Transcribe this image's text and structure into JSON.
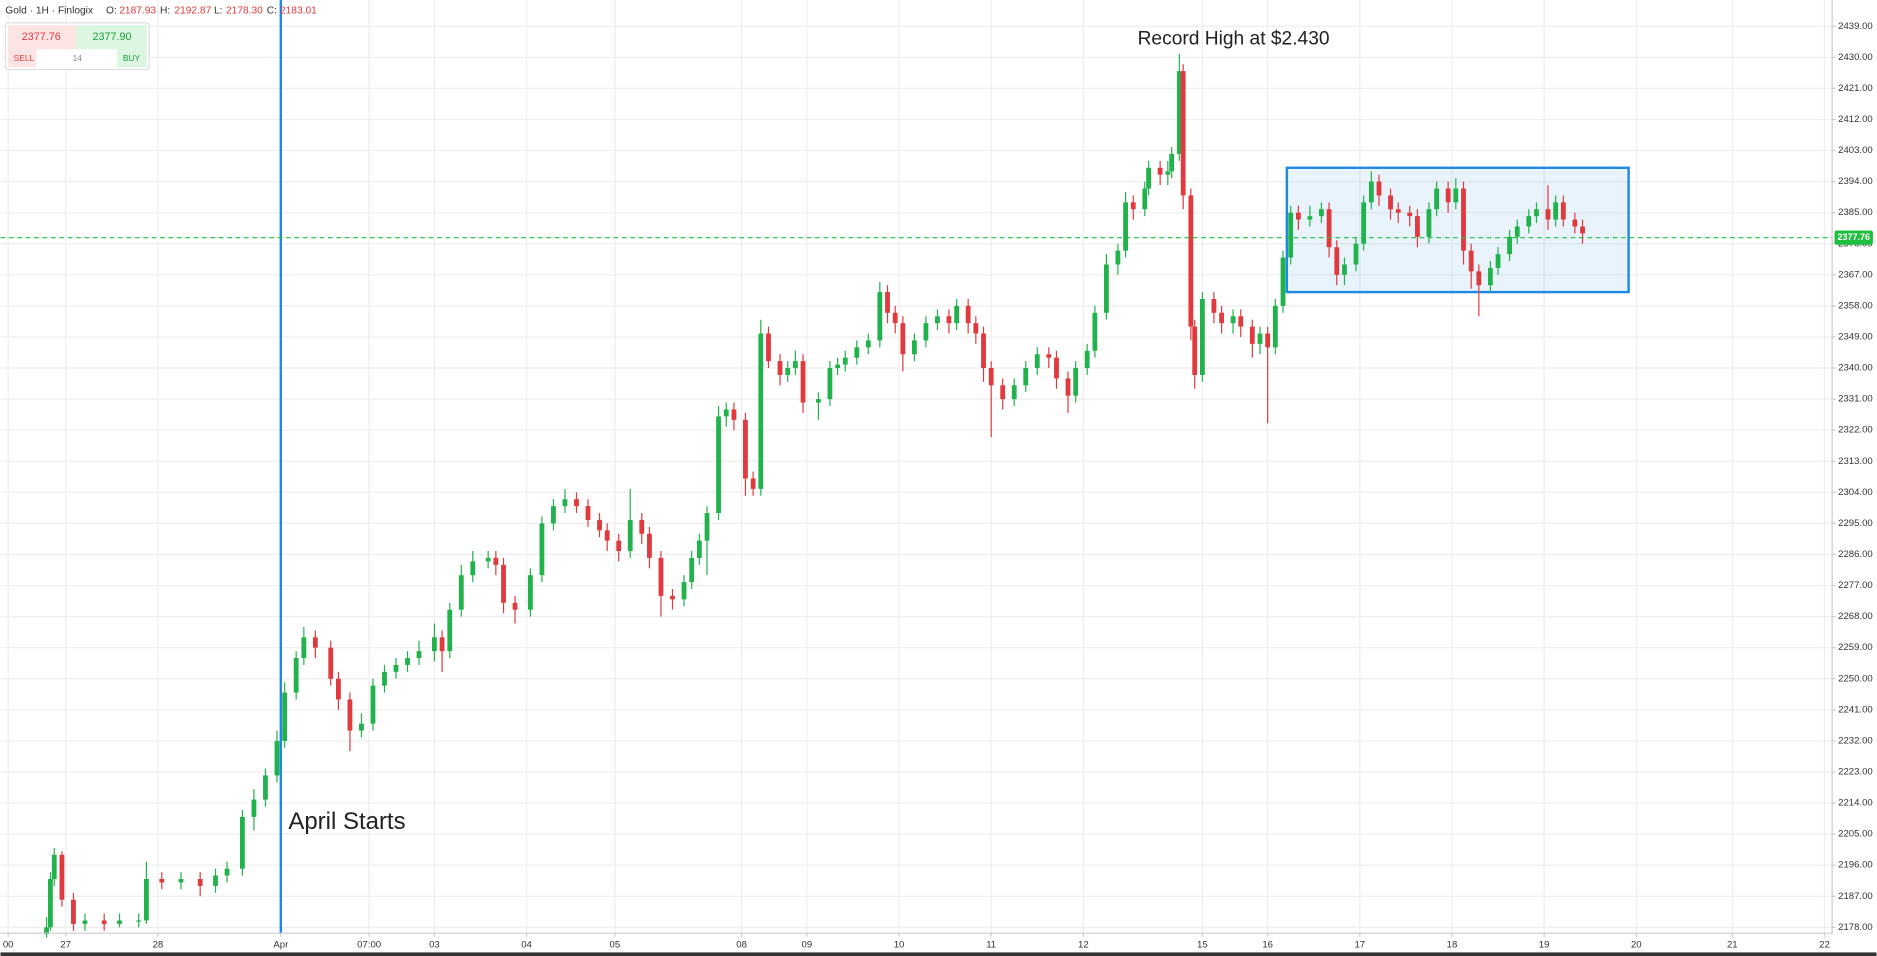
{
  "header": {
    "title": "Gold · 1H · Finlogix",
    "o_label": "O:",
    "o": "2187.93",
    "h_label": "H:",
    "h": "2192.87",
    "l_label": "L:",
    "l": "2178.30",
    "c_label": "C:",
    "c": "2183.01"
  },
  "trade_widget": {
    "sell_price": "2377.76",
    "buy_price": "2377.90",
    "sell": "SELL",
    "spread": "14",
    "buy": "BUY"
  },
  "chart_data": {
    "type": "candlestick",
    "annotations": [
      "Record High at $2.430",
      "April Starts"
    ],
    "colors": {
      "up": "#22b24c",
      "down": "#e0393e"
    },
    "grid": true,
    "last_price": 2377.76,
    "last_price_color": "#1fbf3f",
    "vline_x": 73,
    "vline_color": "#1e88e5",
    "range_box": {
      "x0": 335,
      "x1": 424,
      "y0": 2362,
      "y1": 2398,
      "color": "#1e88e5"
    },
    "xlim": [
      0,
      477
    ],
    "ylim": [
      2176.3,
      2446.6
    ],
    "xticks": [
      {
        "value": 2,
        "label": "00"
      },
      {
        "value": 17,
        "label": "27"
      },
      {
        "value": 41,
        "label": "28"
      },
      {
        "value": 73,
        "label": "Apr"
      },
      {
        "value": 96,
        "label": "07:00"
      },
      {
        "value": 113,
        "label": "03"
      },
      {
        "value": 137,
        "label": "04"
      },
      {
        "value": 160,
        "label": "05"
      },
      {
        "value": 193,
        "label": "08"
      },
      {
        "value": 210,
        "label": "09"
      },
      {
        "value": 234,
        "label": "10"
      },
      {
        "value": 258,
        "label": "11"
      },
      {
        "value": 282,
        "label": "12"
      },
      {
        "value": 313,
        "label": "15"
      },
      {
        "value": 330,
        "label": "16"
      },
      {
        "value": 354,
        "label": "17"
      },
      {
        "value": 378,
        "label": "18"
      },
      {
        "value": 402,
        "label": "19"
      },
      {
        "value": 426,
        "label": "20"
      },
      {
        "value": 451,
        "label": "21"
      },
      {
        "value": 475,
        "label": "22"
      }
    ],
    "yticks": [
      {
        "value": 2178,
        "label": "2178.00"
      },
      {
        "value": 2187,
        "label": "2187.00"
      },
      {
        "value": 2196,
        "label": "2196.00"
      },
      {
        "value": 2205,
        "label": "2205.00"
      },
      {
        "value": 2214,
        "label": "2214.00"
      },
      {
        "value": 2223,
        "label": "2223.00"
      },
      {
        "value": 2232,
        "label": "2232.00"
      },
      {
        "value": 2241,
        "label": "2241.00"
      },
      {
        "value": 2250,
        "label": "2250.00"
      },
      {
        "value": 2259,
        "label": "2259.00"
      },
      {
        "value": 2268,
        "label": "2268.00"
      },
      {
        "value": 2277,
        "label": "2277.00"
      },
      {
        "value": 2286,
        "label": "2286.00"
      },
      {
        "value": 2295,
        "label": "2295.00"
      },
      {
        "value": 2304,
        "label": "2304.00"
      },
      {
        "value": 2313,
        "label": "2313.00"
      },
      {
        "value": 2322,
        "label": "2322.00"
      },
      {
        "value": 2331,
        "label": "2331.00"
      },
      {
        "value": 2340,
        "label": "2340.00"
      },
      {
        "value": 2349,
        "label": "2349.00"
      },
      {
        "value": 2358,
        "label": "2358.00"
      },
      {
        "value": 2367,
        "label": "2367.00"
      },
      {
        "value": 2376,
        "label": "2376.00"
      },
      {
        "value": 2385,
        "label": "2385.00"
      },
      {
        "value": 2394,
        "label": "2394.00"
      },
      {
        "value": 2403,
        "label": "2403.00"
      },
      {
        "value": 2412,
        "label": "2412.00"
      },
      {
        "value": 2421,
        "label": "2421.00"
      },
      {
        "value": 2430,
        "label": "2430.00"
      },
      {
        "value": 2439,
        "label": "2439.00"
      }
    ],
    "x": [
      12,
      13,
      14,
      16,
      19,
      22,
      27,
      31,
      36,
      38,
      42,
      47,
      52,
      56,
      59,
      63,
      66,
      69,
      72,
      74,
      77,
      79,
      82,
      86,
      88,
      91,
      94,
      97,
      100,
      103,
      106,
      109,
      113,
      115,
      117,
      120,
      123,
      127,
      129,
      131,
      134,
      138,
      141,
      144,
      147,
      150,
      153,
      156,
      158,
      161,
      164,
      167,
      169,
      172,
      175,
      178,
      180,
      182,
      184,
      187,
      189,
      191,
      194,
      196,
      198,
      200,
      203,
      205,
      207,
      209,
      213,
      216,
      218,
      220,
      223,
      226,
      229,
      231,
      233,
      235,
      238,
      241,
      244,
      247,
      249,
      252,
      254,
      256,
      258,
      261,
      264,
      267,
      270,
      273,
      275,
      278,
      280,
      283,
      285,
      288,
      291,
      293,
      295,
      298,
      299,
      302,
      304,
      305,
      307,
      308,
      310,
      311,
      313,
      316,
      318,
      321,
      323,
      326,
      328,
      330,
      332,
      334,
      336,
      338,
      341,
      344,
      346,
      348,
      350,
      353,
      355,
      357,
      359,
      362,
      364,
      367,
      369,
      372,
      374,
      377,
      379,
      381,
      383,
      385,
      388,
      390,
      393,
      395,
      398,
      400,
      403,
      405,
      407,
      410,
      412
    ],
    "open": [
      2176,
      2178,
      2192,
      2199,
      2186,
      2179,
      2180,
      2179,
      2180,
      2180,
      2192,
      2191,
      2192,
      2190,
      2193,
      2195,
      2210,
      2215,
      2222,
      2232,
      2246,
      2256,
      2262,
      2259,
      2250,
      2244,
      2235,
      2237,
      2248,
      2252,
      2254,
      2256,
      2258,
      2262,
      2258,
      2270,
      2280,
      2284,
      2285,
      2283,
      2272,
      2270,
      2280,
      2295,
      2300,
      2302,
      2300,
      2296,
      2293,
      2290,
      2287,
      2296,
      2292,
      2285,
      2274,
      2273,
      2278,
      2285,
      2290,
      2298,
      2326,
      2328,
      2325,
      2308,
      2305,
      2350,
      2342,
      2338,
      2340,
      2342,
      2330,
      2331,
      2340,
      2341,
      2343,
      2346,
      2348,
      2362,
      2356,
      2353,
      2344,
      2348,
      2353,
      2355,
      2353,
      2358,
      2353,
      2350,
      2340,
      2335,
      2331,
      2335,
      2340,
      2344,
      2343,
      2337,
      2332,
      2340,
      2345,
      2356,
      2370,
      2374,
      2388,
      2386,
      2392,
      2398,
      2396,
      2397,
      2402,
      2426,
      2390,
      2352,
      2338,
      2360,
      2356,
      2353,
      2355,
      2352,
      2347,
      2350,
      2346,
      2358,
      2372,
      2385,
      2383,
      2384,
      2386,
      2375,
      2367,
      2370,
      2376,
      2388,
      2394,
      2390,
      2386,
      2385,
      2384,
      2378,
      2386,
      2392,
      2388,
      2392,
      2374,
      2368,
      2364,
      2369,
      2373,
      2378,
      2381,
      2384,
      2386,
      2383,
      2388,
      2383,
      2381
    ],
    "high": [
      2181,
      2194,
      2201,
      2200,
      2188,
      2182,
      2182,
      2182,
      2182,
      2197,
      2194,
      2194,
      2194,
      2195,
      2197,
      2212,
      2218,
      2224,
      2235,
      2249,
      2258,
      2265,
      2264,
      2261,
      2252,
      2246,
      2240,
      2250,
      2254,
      2256,
      2258,
      2261,
      2266,
      2264,
      2272,
      2283,
      2287,
      2287,
      2287,
      2285,
      2274,
      2282,
      2297,
      2302,
      2305,
      2304,
      2302,
      2298,
      2295,
      2292,
      2305,
      2298,
      2294,
      2287,
      2276,
      2280,
      2287,
      2292,
      2300,
      2329,
      2330,
      2330,
      2327,
      2310,
      2354,
      2352,
      2344,
      2342,
      2345,
      2344,
      2333,
      2342,
      2343,
      2345,
      2348,
      2350,
      2365,
      2364,
      2358,
      2355,
      2350,
      2355,
      2357,
      2357,
      2360,
      2360,
      2355,
      2352,
      2342,
      2337,
      2337,
      2342,
      2346,
      2346,
      2345,
      2339,
      2342,
      2347,
      2358,
      2373,
      2376,
      2391,
      2390,
      2394,
      2400,
      2400,
      2400,
      2404,
      2431,
      2428,
      2392,
      2354,
      2362,
      2362,
      2358,
      2357,
      2357,
      2354,
      2352,
      2352,
      2360,
      2374,
      2387,
      2387,
      2387,
      2388,
      2388,
      2377,
      2372,
      2378,
      2390,
      2397,
      2396,
      2392,
      2388,
      2387,
      2386,
      2388,
      2394,
      2394,
      2395,
      2394,
      2376,
      2370,
      2371,
      2375,
      2380,
      2383,
      2386,
      2388,
      2393,
      2390,
      2390,
      2385,
      2383
    ],
    "low": [
      2175,
      2177,
      2190,
      2184,
      2177,
      2177,
      2177,
      2178,
      2178,
      2179,
      2189,
      2189,
      2187,
      2188,
      2191,
      2193,
      2206,
      2213,
      2220,
      2230,
      2244,
      2254,
      2256,
      2248,
      2241,
      2229,
      2233,
      2235,
      2246,
      2250,
      2252,
      2254,
      2255,
      2252,
      2256,
      2268,
      2278,
      2282,
      2280,
      2269,
      2266,
      2268,
      2278,
      2293,
      2298,
      2298,
      2294,
      2291,
      2287,
      2284,
      2285,
      2289,
      2282,
      2268,
      2270,
      2271,
      2276,
      2283,
      2280,
      2296,
      2323,
      2322,
      2303,
      2303,
      2303,
      2340,
      2335,
      2336,
      2338,
      2327,
      2325,
      2329,
      2338,
      2339,
      2341,
      2344,
      2346,
      2353,
      2350,
      2339,
      2342,
      2346,
      2351,
      2350,
      2351,
      2350,
      2347,
      2336,
      2320,
      2328,
      2329,
      2333,
      2338,
      2340,
      2334,
      2327,
      2330,
      2338,
      2343,
      2354,
      2367,
      2372,
      2383,
      2384,
      2390,
      2393,
      2393,
      2395,
      2400,
      2386,
      2348,
      2334,
      2336,
      2353,
      2350,
      2350,
      2349,
      2343,
      2344,
      2324,
      2344,
      2356,
      2370,
      2380,
      2381,
      2382,
      2372,
      2364,
      2364,
      2368,
      2374,
      2386,
      2387,
      2383,
      2382,
      2381,
      2375,
      2376,
      2384,
      2385,
      2386,
      2370,
      2363,
      2355,
      2362,
      2367,
      2371,
      2376,
      2379,
      2382,
      2380,
      2381,
      2381,
      2379,
      2376
    ],
    "close": [
      2178,
      2192,
      2199,
      2186,
      2179,
      2180,
      2179,
      2180,
      2180,
      2192,
      2191,
      2192,
      2190,
      2193,
      2195,
      2210,
      2215,
      2222,
      2232,
      2246,
      2256,
      2262,
      2259,
      2250,
      2244,
      2235,
      2237,
      2248,
      2252,
      2254,
      2256,
      2258,
      2262,
      2258,
      2270,
      2280,
      2284,
      2285,
      2283,
      2272,
      2270,
      2280,
      2295,
      2300,
      2302,
      2300,
      2296,
      2293,
      2290,
      2287,
      2296,
      2292,
      2285,
      2274,
      2273,
      2278,
      2285,
      2290,
      2298,
      2326,
      2328,
      2325,
      2308,
      2305,
      2350,
      2342,
      2338,
      2340,
      2342,
      2330,
      2331,
      2340,
      2341,
      2343,
      2346,
      2348,
      2362,
      2356,
      2353,
      2344,
      2348,
      2353,
      2355,
      2353,
      2358,
      2353,
      2350,
      2340,
      2335,
      2331,
      2335,
      2340,
      2344,
      2343,
      2337,
      2332,
      2340,
      2345,
      2356,
      2370,
      2374,
      2388,
      2386,
      2392,
      2398,
      2396,
      2397,
      2402,
      2426,
      2390,
      2352,
      2338,
      2360,
      2356,
      2353,
      2355,
      2352,
      2347,
      2350,
      2346,
      2358,
      2372,
      2385,
      2383,
      2384,
      2386,
      2375,
      2367,
      2370,
      2376,
      2388,
      2394,
      2390,
      2386,
      2385,
      2384,
      2378,
      2386,
      2392,
      2388,
      2392,
      2374,
      2368,
      2364,
      2369,
      2373,
      2378,
      2381,
      2384,
      2386,
      2383,
      2388,
      2383,
      2381,
      2379
    ]
  }
}
